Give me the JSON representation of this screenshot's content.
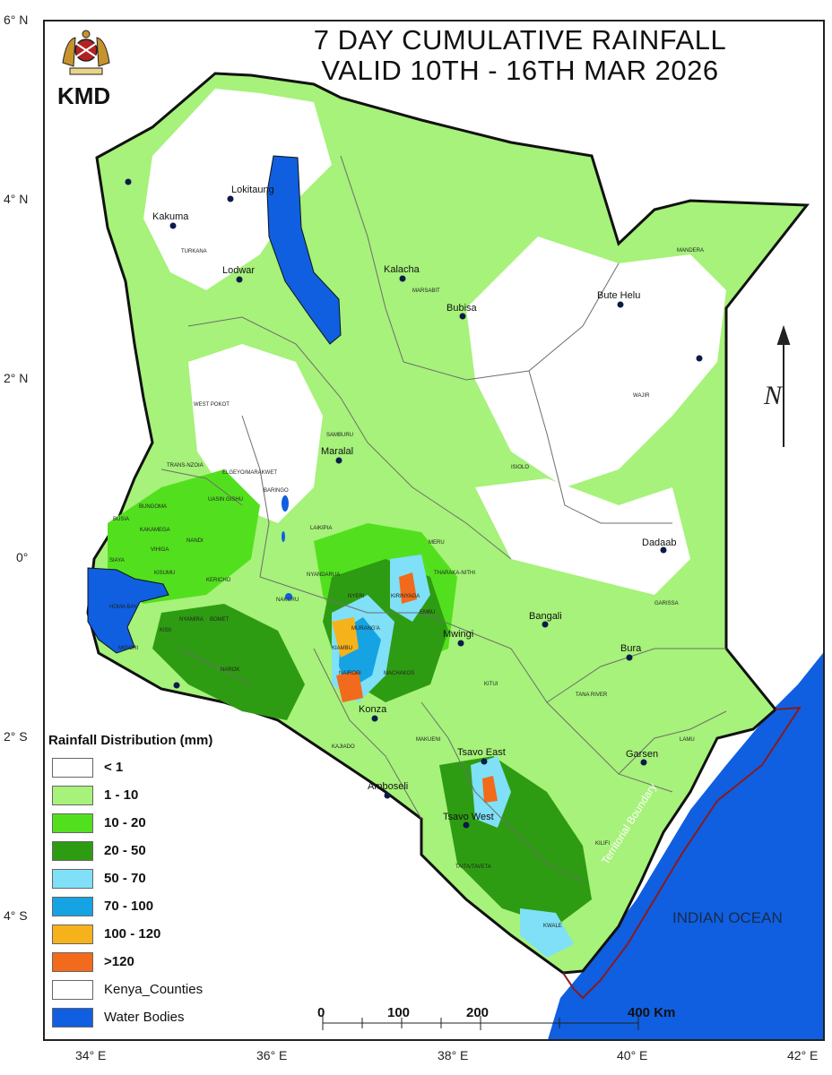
{
  "header": {
    "title_line1": "7 DAY CUMULATIVE RAINFALL",
    "title_line2": "VALID 10TH - 16TH MAR  2026",
    "logo_text": "KMD",
    "logo_icon": "kenya-coat-of-arms"
  },
  "axes": {
    "lat_labels": [
      "6° N",
      "4° N",
      "2° N",
      "0°",
      "2° S",
      "4° S"
    ],
    "lon_labels": [
      "34° E",
      "36° E",
      "38° E",
      "40° E",
      "42° E"
    ]
  },
  "legend": {
    "title": "Rainfall Distribution (mm)",
    "items": [
      {
        "label": "< 1",
        "color": "#ffffff"
      },
      {
        "label": "1 - 10",
        "color": "#a6f27a"
      },
      {
        "label": "10 - 20",
        "color": "#52e01e"
      },
      {
        "label": "20 - 50",
        "color": "#2e9c12"
      },
      {
        "label": "50 - 70",
        "color": "#7fe0f7"
      },
      {
        "label": "70 - 100",
        "color": "#16a3e3"
      },
      {
        "label": "100 - 120",
        "color": "#f6b21a"
      },
      {
        "label": ">120",
        "color": "#f26a1b"
      }
    ],
    "counties_label": "Kenya_Counties",
    "water_label": "Water Bodies",
    "water_color": "#0f5fe0"
  },
  "scale_bar": {
    "labels": [
      "0",
      "100",
      "200",
      "400 Km"
    ]
  },
  "places": [
    {
      "name": "Lokitaung"
    },
    {
      "name": "Kakuma"
    },
    {
      "name": "Lodwar"
    },
    {
      "name": "Kalacha"
    },
    {
      "name": "Bubisa"
    },
    {
      "name": "Bute Helu"
    },
    {
      "name": "Maralal"
    },
    {
      "name": "Dadaab"
    },
    {
      "name": "Bangali"
    },
    {
      "name": "Mwingi"
    },
    {
      "name": "Bura"
    },
    {
      "name": "Konza"
    },
    {
      "name": "Tsavo East"
    },
    {
      "name": "Garsen"
    },
    {
      "name": "Amboseli"
    },
    {
      "name": "Tsavo West"
    }
  ],
  "counties": [
    "TURKANA",
    "MARSABIT",
    "MANDERA",
    "WAJIR",
    "WEST POKOT",
    "SAMBURU",
    "ISIOLO",
    "TRANS-NZOIA",
    "ELGEYO/MARAKWET",
    "UASIN GISHU",
    "BARINGO",
    "BUNGOMA",
    "BUSIA",
    "KAKAMEGA",
    "NANDI",
    "LAIKIPIA",
    "MERU",
    "SIAYA",
    "VIHIGA",
    "KISUMU",
    "KERICHO",
    "NYANDARUA",
    "THARAKA-NITHI",
    "NYERI",
    "KIRINYAGA",
    "HOMA BAY",
    "NAKURU",
    "EMBU",
    "MURANG'A",
    "GARISSA",
    "KISII",
    "NYAMIRA",
    "BOMET",
    "KIAMBU",
    "MIGORI",
    "NAROK",
    "NAIROBI",
    "MACHAKOS",
    "KITUI",
    "TANA RIVER",
    "KAJIADO",
    "MAKUENI",
    "LAMU",
    "KILIFI",
    "TAITA/TAVETA",
    "KWALE"
  ],
  "ocean_label": "INDIAN OCEAN",
  "boundary_label": "Territorial Boundary",
  "north_label": "N"
}
